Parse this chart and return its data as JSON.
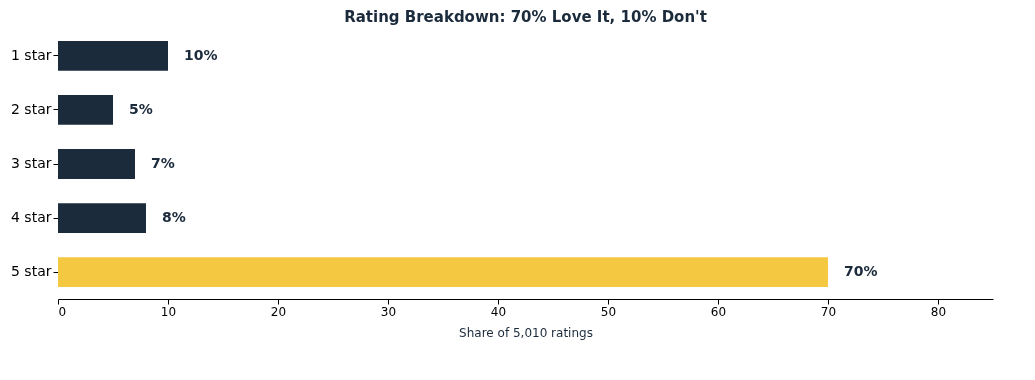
{
  "chart_data": {
    "type": "bar",
    "orientation": "horizontal",
    "title": "Rating Breakdown: 70% Love It, 10% Don't",
    "xlabel": "Share of 5,010 ratings",
    "categories": [
      "1 star",
      "2 star",
      "3 star",
      "4 star",
      "5 star"
    ],
    "values": [
      10,
      5,
      7,
      8,
      70
    ],
    "colors": [
      "#1c2b3c",
      "#1c2b3c",
      "#1c2b3c",
      "#1c2b3c",
      "#f5c842"
    ],
    "value_labels": [
      "10%",
      "5%",
      "7%",
      "8%",
      "70%"
    ],
    "xlim": [
      0,
      85
    ],
    "xticks": [
      0,
      10,
      20,
      30,
      40,
      50,
      60,
      70,
      80
    ],
    "grid": false
  }
}
